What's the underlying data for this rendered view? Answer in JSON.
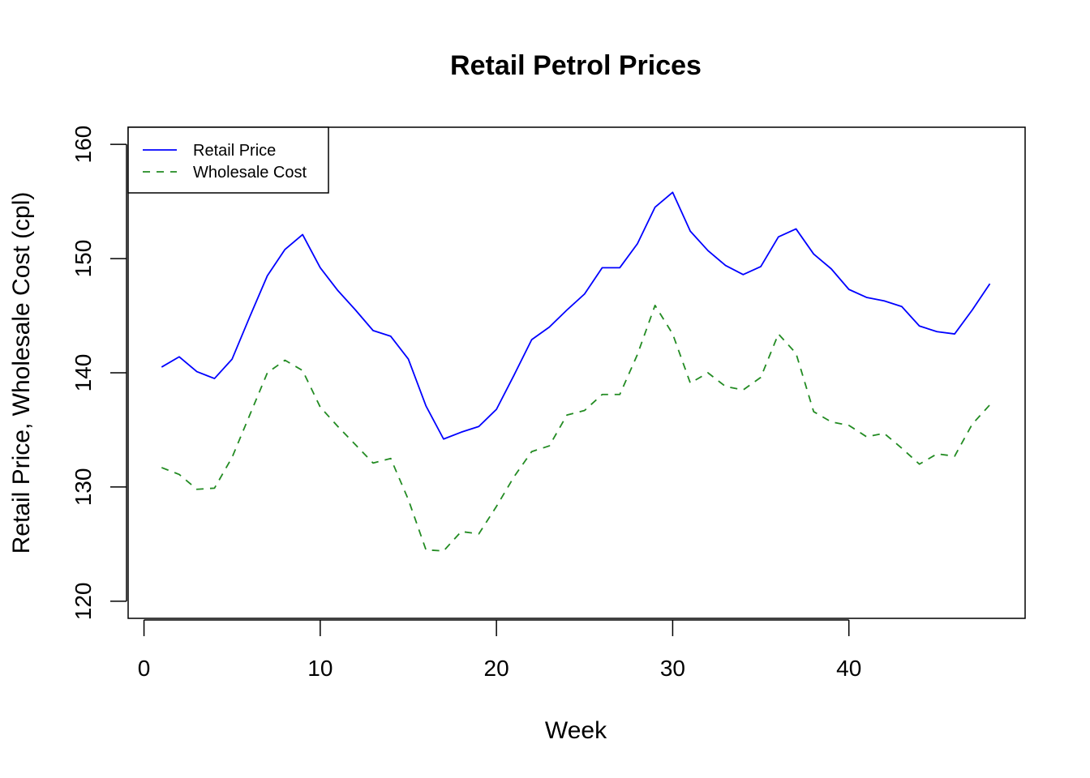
{
  "chart_data": {
    "type": "line",
    "title": "Retail Petrol Prices",
    "xlabel": "Week",
    "ylabel": "Retail Price, Wholesale Cost (cpl)",
    "xlim": [
      -0.9,
      50
    ],
    "ylim": [
      118.5,
      161.5
    ],
    "xticks": [
      0,
      10,
      20,
      30,
      40
    ],
    "yticks": [
      120,
      130,
      140,
      150,
      160
    ],
    "grid": false,
    "legend_position": "top-left",
    "x": [
      1,
      2,
      3,
      4,
      5,
      6,
      7,
      8,
      9,
      10,
      11,
      12,
      13,
      14,
      15,
      16,
      17,
      18,
      19,
      20,
      21,
      22,
      23,
      24,
      25,
      26,
      27,
      28,
      29,
      30,
      31,
      32,
      33,
      34,
      35,
      36,
      37,
      38,
      39,
      40,
      41,
      42,
      43,
      44,
      45,
      46,
      47,
      48
    ],
    "series": [
      {
        "name": "Retail Price",
        "color": "#0000ff",
        "style": "solid",
        "values": [
          140.5,
          141.4,
          140.1,
          139.5,
          141.2,
          144.9,
          148.5,
          150.8,
          152.1,
          149.2,
          147.2,
          145.5,
          143.7,
          143.2,
          141.2,
          137.1,
          134.2,
          134.8,
          135.3,
          136.8,
          139.8,
          142.9,
          144.0,
          145.5,
          146.9,
          149.2,
          149.2,
          151.3,
          154.5,
          155.8,
          152.4,
          150.7,
          149.4,
          148.6,
          149.3,
          151.9,
          152.6,
          150.4,
          149.1,
          147.3,
          146.6,
          146.3,
          145.8,
          144.1,
          143.6,
          143.4,
          145.5,
          147.8
        ]
      },
      {
        "name": "Wholesale Cost",
        "color": "#228b22",
        "style": "dashed",
        "values": [
          131.7,
          131.1,
          129.8,
          129.9,
          132.6,
          136.3,
          140.0,
          141.1,
          140.2,
          137.0,
          135.3,
          133.7,
          132.1,
          132.5,
          128.9,
          124.5,
          124.4,
          126.1,
          125.9,
          128.3,
          130.9,
          133.1,
          133.6,
          136.3,
          136.7,
          138.1,
          138.1,
          141.6,
          145.9,
          143.4,
          139.1,
          140.0,
          138.8,
          138.5,
          139.6,
          143.4,
          141.7,
          136.6,
          135.7,
          135.4,
          134.4,
          134.7,
          133.4,
          132.0,
          132.9,
          132.7,
          135.5,
          137.2
        ]
      }
    ]
  }
}
